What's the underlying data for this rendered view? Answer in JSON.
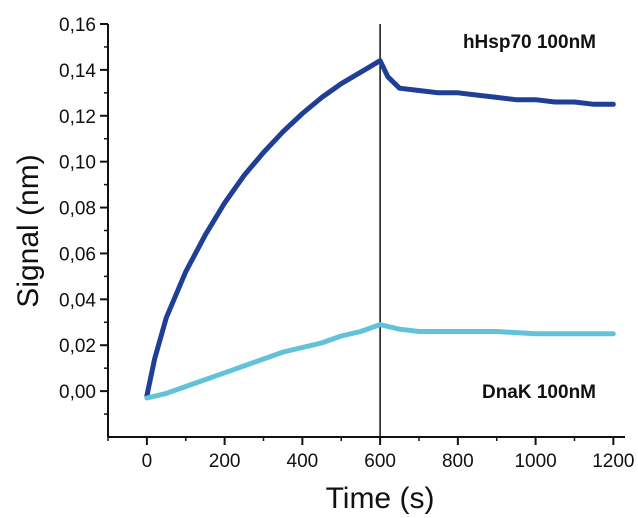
{
  "chart_data": {
    "type": "line",
    "title": "",
    "xlabel": "Time (s)",
    "ylabel": "Signal (nm)",
    "xlim": [
      -100,
      1230
    ],
    "ylim": [
      -0.02,
      0.16
    ],
    "x_ticks": [
      0,
      200,
      400,
      600,
      800,
      1000,
      1200
    ],
    "x_tick_labels": [
      "0",
      "200",
      "400",
      "600",
      "800",
      "1000",
      "1200"
    ],
    "y_ticks": [
      0.0,
      0.02,
      0.04,
      0.06,
      0.08,
      0.1,
      0.12,
      0.14,
      0.16
    ],
    "y_tick_labels": [
      "0,00",
      "0,02",
      "0,04",
      "0,06",
      "0,08",
      "0,10",
      "0,12",
      "0,14",
      "0,16"
    ],
    "grid": false,
    "legend": "none",
    "vertical_marker_x": 600,
    "series": [
      {
        "name": "hHsp70 100nM",
        "color": "#1f3f96",
        "x": [
          0,
          20,
          50,
          100,
          150,
          200,
          250,
          300,
          350,
          400,
          450,
          500,
          550,
          600,
          620,
          650,
          700,
          750,
          800,
          850,
          900,
          950,
          1000,
          1050,
          1100,
          1150,
          1200
        ],
        "y": [
          -0.002,
          0.014,
          0.032,
          0.052,
          0.068,
          0.082,
          0.094,
          0.104,
          0.113,
          0.121,
          0.128,
          0.134,
          0.139,
          0.144,
          0.137,
          0.132,
          0.131,
          0.13,
          0.13,
          0.129,
          0.128,
          0.127,
          0.127,
          0.126,
          0.126,
          0.125,
          0.125
        ]
      },
      {
        "name": "DnaK 100nM",
        "color": "#62c3d8",
        "x": [
          0,
          50,
          100,
          150,
          200,
          250,
          300,
          350,
          400,
          450,
          500,
          550,
          600,
          650,
          700,
          800,
          900,
          1000,
          1100,
          1200
        ],
        "y": [
          -0.003,
          -0.001,
          0.002,
          0.005,
          0.008,
          0.011,
          0.014,
          0.017,
          0.019,
          0.021,
          0.024,
          0.026,
          0.029,
          0.027,
          0.026,
          0.026,
          0.026,
          0.025,
          0.025,
          0.025
        ]
      }
    ]
  }
}
